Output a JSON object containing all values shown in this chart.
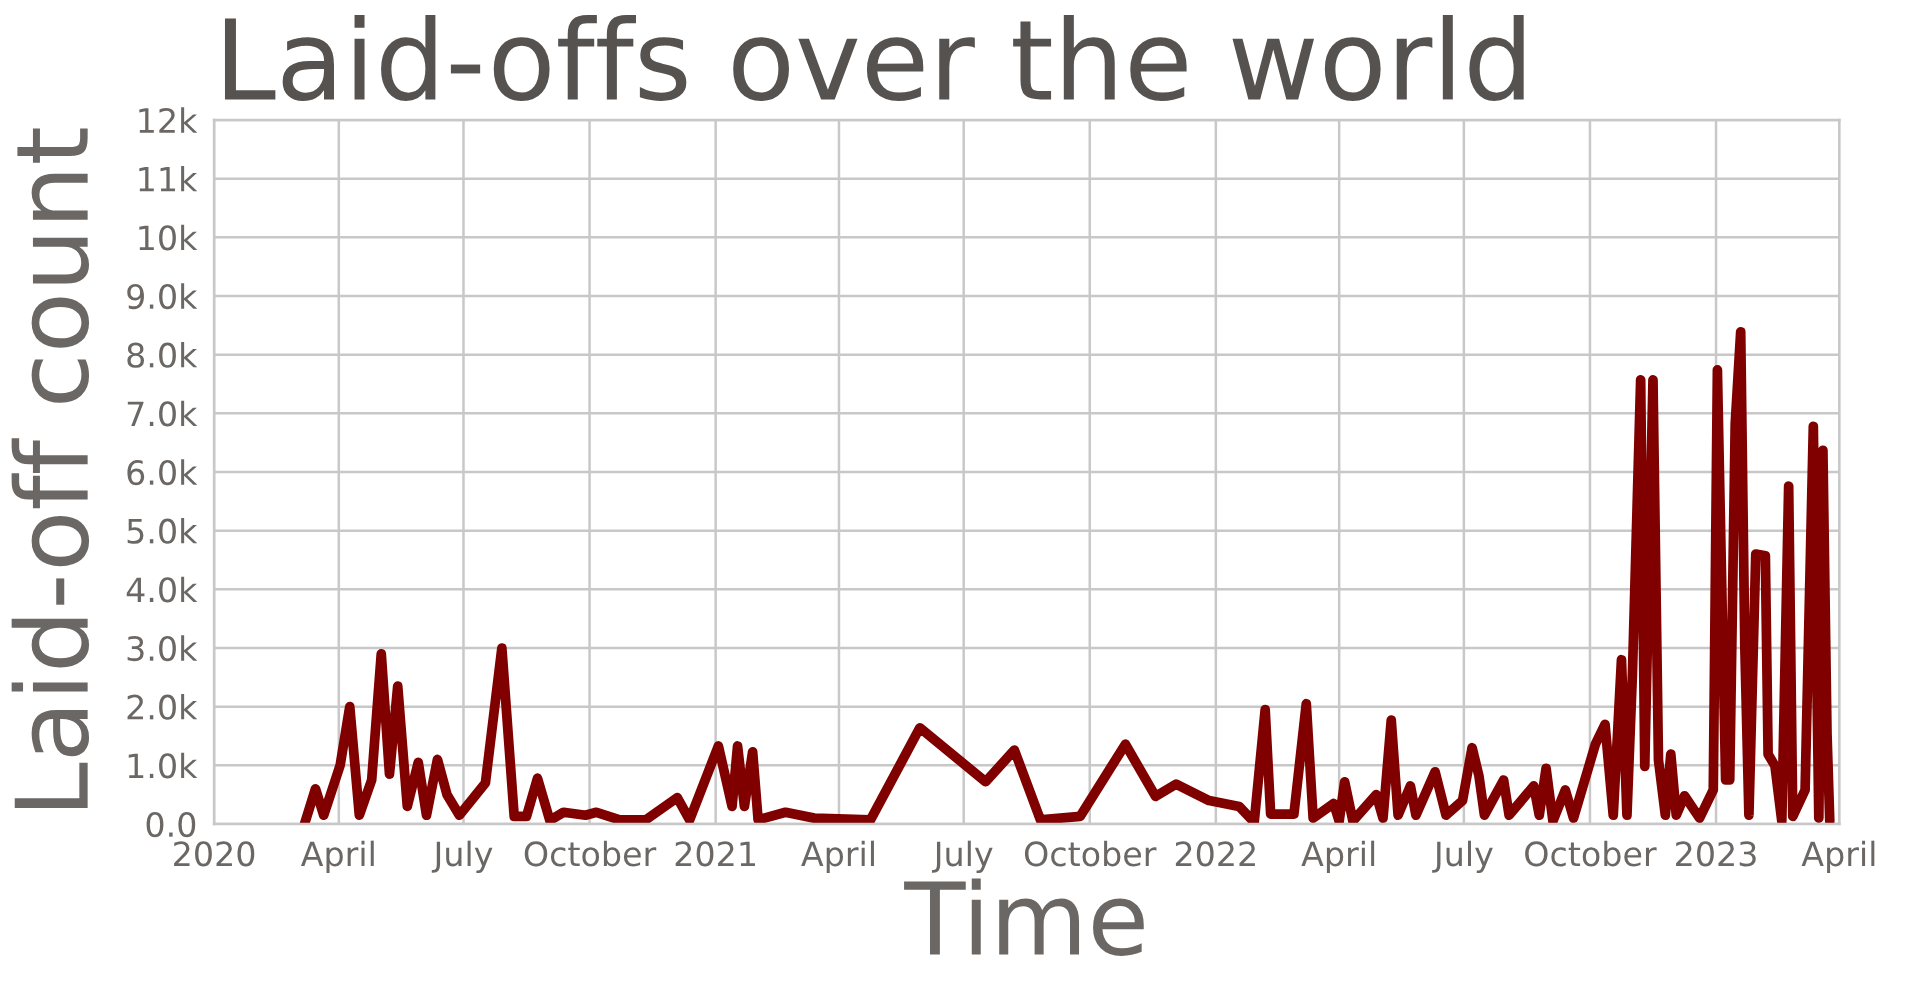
{
  "chart_data": {
    "type": "line",
    "title": "Laid-offs over the world",
    "xlabel": "Time",
    "ylabel": "Laid-off count",
    "x": [
      "2020-03-07",
      "2020-03-15",
      "2020-03-21",
      "2020-04-02",
      "2020-04-09",
      "2020-04-16",
      "2020-04-25",
      "2020-05-02",
      "2020-05-08",
      "2020-05-14",
      "2020-05-21",
      "2020-05-29",
      "2020-06-04",
      "2020-06-12",
      "2020-06-19",
      "2020-06-28",
      "2020-07-17",
      "2020-07-29",
      "2020-08-07",
      "2020-08-16",
      "2020-08-24",
      "2020-09-02",
      "2020-09-12",
      "2020-09-28",
      "2020-10-06",
      "2020-10-23",
      "2020-11-11",
      "2020-12-04",
      "2020-12-13",
      "2021-01-03",
      "2021-01-13",
      "2021-01-17",
      "2021-01-22",
      "2021-01-28",
      "2021-02-01",
      "2021-02-21",
      "2021-03-14",
      "2021-04-24",
      "2021-05-30",
      "2021-07-17",
      "2021-08-07",
      "2021-08-26",
      "2021-09-24",
      "2021-10-27",
      "2021-11-18",
      "2021-12-03",
      "2021-12-27",
      "2022-01-18",
      "2022-01-29",
      "2022-02-06",
      "2022-02-10",
      "2022-02-27",
      "2022-03-08",
      "2022-03-13",
      "2022-03-28",
      "2022-04-01",
      "2022-04-05",
      "2022-04-11",
      "2022-04-28",
      "2022-05-03",
      "2022-05-09",
      "2022-05-14",
      "2022-05-23",
      "2022-05-27",
      "2022-06-10",
      "2022-06-18",
      "2022-06-30",
      "2022-07-07",
      "2022-07-12",
      "2022-07-16",
      "2022-07-30",
      "2022-08-03",
      "2022-08-21",
      "2022-08-25",
      "2022-08-30",
      "2022-09-04",
      "2022-09-13",
      "2022-09-19",
      "2022-10-05",
      "2022-10-12",
      "2022-10-18",
      "2022-10-24",
      "2022-10-28",
      "2022-11-01",
      "2022-11-07",
      "2022-11-10",
      "2022-11-16",
      "2022-11-20",
      "2022-11-25",
      "2022-11-29",
      "2022-12-03",
      "2022-12-09",
      "2022-12-20",
      "2022-12-30",
      "2023-01-02",
      "2023-01-08",
      "2023-01-11",
      "2023-01-15",
      "2023-01-19",
      "2023-01-22",
      "2023-01-25",
      "2023-01-30",
      "2023-02-06",
      "2023-02-08",
      "2023-02-13",
      "2023-02-18",
      "2023-02-23",
      "2023-02-26",
      "2023-03-07",
      "2023-03-13",
      "2023-03-17",
      "2023-03-20",
      "2023-03-23",
      "2023-03-25"
    ],
    "series": [
      {
        "color": "#800000",
        "values": [
          0,
          600,
          150,
          1000,
          2000,
          150,
          750,
          2900,
          850,
          2350,
          300,
          1050,
          150,
          1100,
          500,
          150,
          700,
          3000,
          130,
          130,
          780,
          60,
          200,
          150,
          200,
          70,
          70,
          450,
          70,
          1330,
          300,
          1330,
          300,
          1230,
          70,
          200,
          100,
          70,
          1640,
          720,
          1260,
          70,
          130,
          1360,
          470,
          680,
          400,
          300,
          30,
          1950,
          170,
          170,
          2050,
          100,
          350,
          50,
          720,
          50,
          500,
          100,
          1770,
          150,
          650,
          150,
          890,
          150,
          400,
          1300,
          820,
          150,
          750,
          150,
          650,
          150,
          950,
          50,
          580,
          100,
          1360,
          1700,
          150,
          2800,
          150,
          2560,
          7570,
          980,
          7570,
          1090,
          150,
          1190,
          150,
          480,
          100,
          580,
          7740,
          750,
          750,
          6820,
          8390,
          3030,
          150,
          4600,
          4570,
          1190,
          990,
          50,
          5760,
          130,
          580,
          6780,
          100,
          6370,
          1530,
          50
        ]
      }
    ],
    "xlim": [
      "2020-01-01",
      "2023-04-01"
    ],
    "xticks": [
      {
        "value": "2020-01-01",
        "label": "2020"
      },
      {
        "value": "2020-04-01",
        "label": "April"
      },
      {
        "value": "2020-07-01",
        "label": "July"
      },
      {
        "value": "2020-10-01",
        "label": "October"
      },
      {
        "value": "2021-01-01",
        "label": "2021"
      },
      {
        "value": "2021-04-01",
        "label": "April"
      },
      {
        "value": "2021-07-01",
        "label": "July"
      },
      {
        "value": "2021-10-01",
        "label": "October"
      },
      {
        "value": "2022-01-01",
        "label": "2022"
      },
      {
        "value": "2022-04-01",
        "label": "April"
      },
      {
        "value": "2022-07-01",
        "label": "July"
      },
      {
        "value": "2022-10-01",
        "label": "October"
      },
      {
        "value": "2023-01-01",
        "label": "2023"
      },
      {
        "value": "2023-04-01",
        "label": "April"
      }
    ],
    "ylim": [
      0,
      12000
    ],
    "yticks": [
      {
        "value": 0,
        "label": "0.0"
      },
      {
        "value": 1000,
        "label": "1.0k"
      },
      {
        "value": 2000,
        "label": "2.0k"
      },
      {
        "value": 3000,
        "label": "3.0k"
      },
      {
        "value": 4000,
        "label": "4.0k"
      },
      {
        "value": 5000,
        "label": "5.0k"
      },
      {
        "value": 6000,
        "label": "6.0k"
      },
      {
        "value": 7000,
        "label": "7.0k"
      },
      {
        "value": 8000,
        "label": "8.0k"
      },
      {
        "value": 9000,
        "label": "9.0k"
      },
      {
        "value": 10000,
        "label": "10k"
      },
      {
        "value": 11000,
        "label": "11k"
      },
      {
        "value": 12000,
        "label": "12k"
      }
    ],
    "grid": true,
    "line_style": "solid"
  }
}
